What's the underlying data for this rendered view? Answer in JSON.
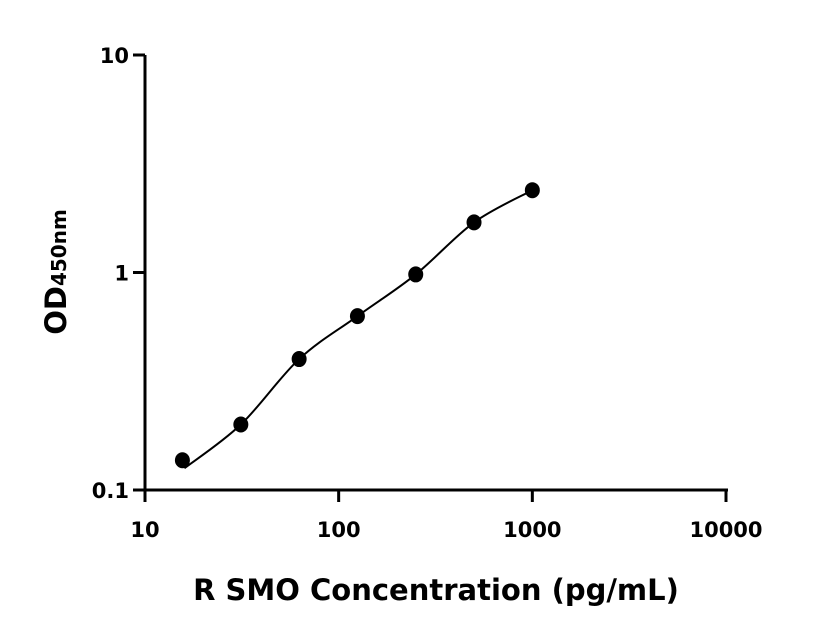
{
  "chart_data": {
    "type": "scatter",
    "title": "",
    "xlabel": "R SMO Concentration (pg/mL)",
    "ylabel": {
      "main": "OD",
      "subscript": "450nm"
    },
    "x_scale": "log",
    "y_scale": "log",
    "xlim": [
      10,
      10000
    ],
    "ylim": [
      0.1,
      10
    ],
    "x_ticks": [
      {
        "value": 10,
        "label": "10"
      },
      {
        "value": 100,
        "label": "100"
      },
      {
        "value": 1000,
        "label": "1000"
      },
      {
        "value": 10000,
        "label": "10000"
      }
    ],
    "y_ticks": [
      {
        "value": 0.1,
        "label": "0.1"
      },
      {
        "value": 1,
        "label": "1"
      },
      {
        "value": 10,
        "label": "10"
      }
    ],
    "grid": false,
    "fit_line": true,
    "color": "#000000",
    "points": [
      {
        "x": 15.6,
        "y": 0.137
      },
      {
        "x": 31.25,
        "y": 0.2
      },
      {
        "x": 62.5,
        "y": 0.4
      },
      {
        "x": 125,
        "y": 0.63
      },
      {
        "x": 250,
        "y": 0.98
      },
      {
        "x": 500,
        "y": 1.7
      },
      {
        "x": 1000,
        "y": 2.39
      }
    ]
  }
}
